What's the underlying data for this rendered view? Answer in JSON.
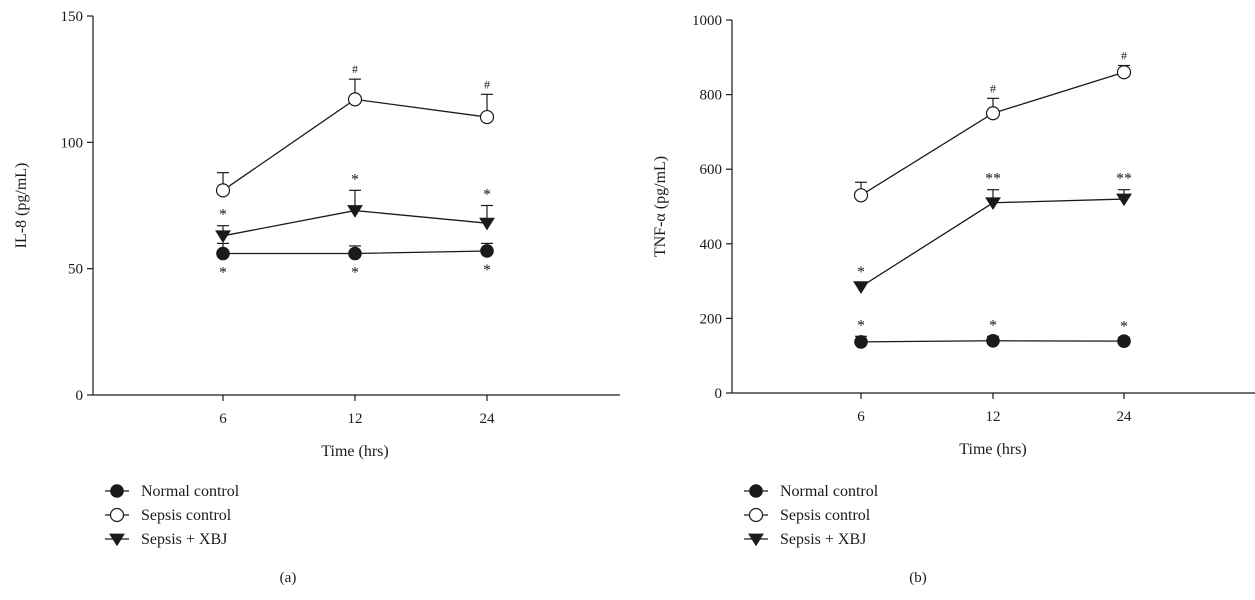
{
  "chart_data": [
    {
      "type": "line",
      "panel_label": "(a)",
      "xlabel": "Time (hrs)",
      "ylabel": "IL-8 (pg/mL)",
      "categories": [
        "6",
        "12",
        "24"
      ],
      "ylim": [
        0,
        150
      ],
      "yticks": [
        0,
        50,
        100,
        150
      ],
      "grid": false,
      "legend_position": "bottom-left",
      "series": [
        {
          "name": "Normal control",
          "marker": "filled-circle",
          "values": [
            56,
            56,
            57
          ],
          "errors": [
            4,
            3,
            3
          ],
          "annotations": [
            "*",
            "*",
            "*"
          ],
          "annotation_side": "below"
        },
        {
          "name": "Sepsis control",
          "marker": "open-circle",
          "values": [
            81,
            117,
            110
          ],
          "errors": [
            7,
            8,
            9
          ],
          "annotations": [
            "",
            "#",
            "#"
          ],
          "annotation_side": "above"
        },
        {
          "name": "Sepsis + XBJ",
          "marker": "filled-triangle-down",
          "values": [
            63,
            73,
            68
          ],
          "errors": [
            4,
            8,
            7
          ],
          "annotations": [
            "*",
            "*",
            "*"
          ],
          "annotation_side": "above"
        }
      ]
    },
    {
      "type": "line",
      "panel_label": "(b)",
      "xlabel": "Time (hrs)",
      "ylabel": "TNF-α (pg/mL)",
      "categories": [
        "6",
        "12",
        "24"
      ],
      "ylim": [
        0,
        1000
      ],
      "yticks": [
        0,
        200,
        400,
        600,
        800,
        1000
      ],
      "grid": false,
      "legend_position": "bottom-left",
      "series": [
        {
          "name": "Normal control",
          "marker": "filled-circle",
          "values": [
            137,
            140,
            139
          ],
          "errors": [
            15,
            12,
            10
          ],
          "annotations": [
            "*",
            "*",
            "*"
          ],
          "annotation_side": "above"
        },
        {
          "name": "Sepsis control",
          "marker": "open-circle",
          "values": [
            530,
            750,
            860
          ],
          "errors": [
            35,
            40,
            18
          ],
          "annotations": [
            "",
            "#",
            "#"
          ],
          "annotation_side": "above"
        },
        {
          "name": "Sepsis + XBJ",
          "marker": "filled-triangle-down",
          "values": [
            285,
            510,
            520
          ],
          "errors": [
            10,
            35,
            25
          ],
          "annotations": [
            "*",
            "**",
            "**"
          ],
          "annotation_side": "above"
        }
      ]
    }
  ]
}
